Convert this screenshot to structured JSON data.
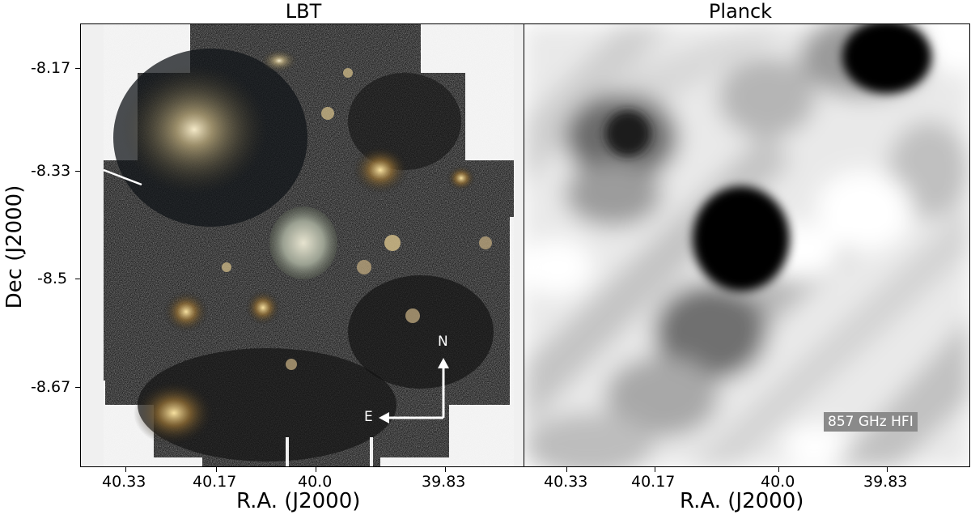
{
  "panels": {
    "left_title": "LBT",
    "right_title": "Planck"
  },
  "axes": {
    "ylabel": "Dec (J2000)",
    "xlabel_left": "R.A. (J2000)",
    "xlabel_right": "R.A. (J2000)",
    "yticks": [
      "-8.17",
      "-8.33",
      "-8.5",
      "-8.67"
    ],
    "xticks_left": [
      "40.33",
      "40.17",
      "40.0",
      "39.83"
    ],
    "xticks_right": [
      "40.33",
      "40.17",
      "40.0",
      "39.83"
    ]
  },
  "compass": {
    "north": "N",
    "east": "E"
  },
  "planck_badge": "857 GHz HFI",
  "colors": {
    "lbt_background": "#f0f0f0",
    "lbt_sky": "#1a1a1a",
    "planck_dark": "#000000",
    "planck_light": "#ffffff",
    "badge": "#8a8a8a"
  }
}
